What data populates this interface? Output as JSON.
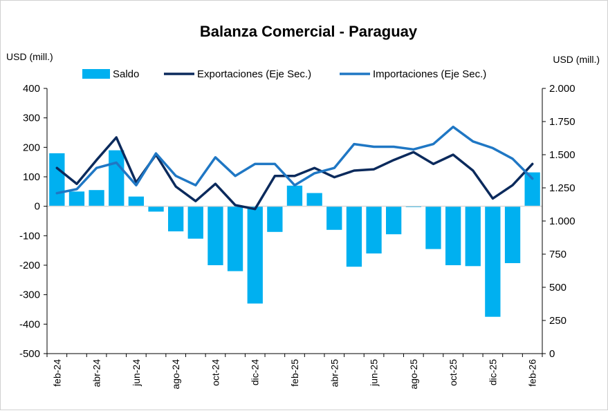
{
  "chart_data": {
    "type": "bar",
    "title": "Balanza Comercial - Paraguay",
    "ylabel_left": "USD (mill.)",
    "ylabel_right": "USD (mill.)",
    "ylim_left": [
      -500,
      400
    ],
    "yticks_left": [
      400,
      300,
      200,
      100,
      0,
      -100,
      -200,
      -300,
      -400,
      -500
    ],
    "ytick_labels_left": [
      "400",
      "300",
      "200",
      "100",
      "0",
      "-100",
      "-200",
      "-300",
      "-400",
      "-500"
    ],
    "ylim_right": [
      0,
      2000
    ],
    "yticks_right": [
      2000,
      1750,
      1500,
      1250,
      1000,
      750,
      500,
      250,
      0
    ],
    "ytick_labels_right": [
      "2.000",
      "1.750",
      "1.500",
      "1.250",
      "1.000",
      "750",
      "500",
      "250",
      "0"
    ],
    "categories": [
      "feb-24",
      "mar-24",
      "abr-24",
      "may-24",
      "jun-24",
      "jul-24",
      "ago-24",
      "sep-24",
      "oct-24",
      "nov-24",
      "dic-24",
      "ene-25",
      "feb-25",
      "mar-25",
      "abr-25",
      "may-25",
      "jun-25",
      "jul-25",
      "ago-25",
      "sep-25",
      "oct-25",
      "nov-25",
      "dic-25",
      "ene-26",
      "feb-26"
    ],
    "x_tick_labels": [
      "feb-24",
      "abr-24",
      "jun-24",
      "ago-24",
      "oct-24",
      "dic-24",
      "feb-25",
      "abr-25",
      "jun-25",
      "ago-25",
      "oct-25",
      "dic-25",
      "feb-26"
    ],
    "x_tick_indices": [
      0,
      2,
      4,
      6,
      8,
      10,
      12,
      14,
      16,
      18,
      20,
      22,
      24
    ],
    "legend_position": "top",
    "series": [
      {
        "name": "Saldo",
        "kind": "bar",
        "axis": "left",
        "color": "#00b0f0",
        "values": [
          180,
          50,
          55,
          190,
          33,
          -18,
          -85,
          -110,
          -200,
          -220,
          -330,
          -87,
          70,
          45,
          -80,
          -205,
          -160,
          -95,
          -3,
          -145,
          -200,
          -203,
          -375,
          -193,
          115
        ]
      },
      {
        "name": "Exportaciones (Eje Sec.)",
        "kind": "line",
        "axis": "right",
        "color": "#0b2a5c",
        "values": [
          1400,
          1280,
          1460,
          1630,
          1290,
          1500,
          1260,
          1150,
          1280,
          1120,
          1090,
          1340,
          1340,
          1400,
          1330,
          1380,
          1390,
          1460,
          1520,
          1430,
          1500,
          1380,
          1170,
          1270,
          1430
        ]
      },
      {
        "name": "Importaciones (Eje Sec.)",
        "kind": "line",
        "axis": "right",
        "color": "#1f77c4",
        "values": [
          1210,
          1240,
          1400,
          1440,
          1270,
          1510,
          1340,
          1270,
          1480,
          1340,
          1430,
          1430,
          1270,
          1360,
          1400,
          1580,
          1560,
          1560,
          1540,
          1580,
          1710,
          1600,
          1550,
          1470,
          1320
        ]
      }
    ]
  }
}
